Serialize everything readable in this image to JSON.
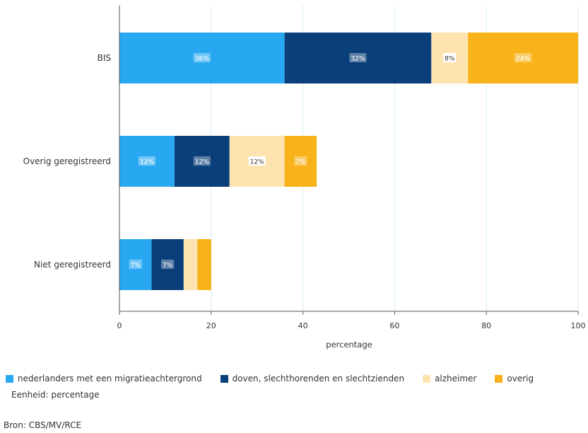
{
  "chart_data": {
    "type": "bar",
    "orientation": "horizontal",
    "stacked": true,
    "categories": [
      "BIS",
      "Overig geregistreerd",
      "Niet geregistreerd"
    ],
    "series": [
      {
        "name": "nederlanders met een migratieachtergrond",
        "color": "#29a8f2",
        "values": [
          36,
          12,
          7
        ],
        "labels": [
          "36%",
          "12%",
          "7%"
        ]
      },
      {
        "name": "doven, slechthorenden en slechtzienden",
        "color": "#0b3f7a",
        "values": [
          32,
          12,
          7
        ],
        "labels": [
          "32%",
          "12%",
          "7%"
        ]
      },
      {
        "name": "alzheimer",
        "color": "#fde3b0",
        "values": [
          8,
          12,
          3
        ],
        "labels": [
          "8%",
          "12%",
          ""
        ]
      },
      {
        "name": "overig",
        "color": "#f8b31b",
        "values": [
          24,
          7,
          3
        ],
        "labels": [
          "24%",
          "7%",
          ""
        ]
      }
    ],
    "xlabel": "percentage",
    "xlim": [
      0,
      100
    ],
    "xticks": [
      0,
      20,
      40,
      60,
      80,
      100
    ],
    "grid": "vertical",
    "legend_position": "bottom"
  },
  "notes": {
    "unit": "Eenheid: percentage",
    "source": "Bron: CBS/MV/RCE"
  }
}
